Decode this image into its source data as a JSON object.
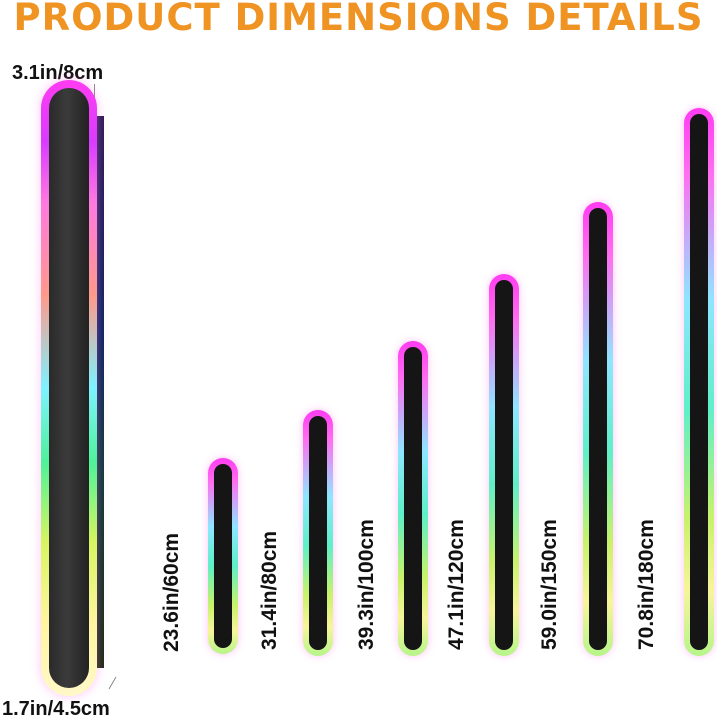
{
  "title": "PRODUCT DIMENSIONS DETAILS",
  "big_bar": {
    "width_label": "3.1in/8cm",
    "depth_label": "1.7in/4.5cm"
  },
  "bars": [
    {
      "length_label": "23.6in/60cm"
    },
    {
      "length_label": "31.4in/80cm"
    },
    {
      "length_label": "39.3in/100cm"
    },
    {
      "length_label": "47.1in/120cm"
    },
    {
      "length_label": "59.0in/150cm"
    },
    {
      "length_label": "70.8in/180cm"
    }
  ],
  "colors": {
    "title": "#ef9323",
    "bar_glow_top": "#ff3cf2",
    "bar_core": "#151515"
  }
}
